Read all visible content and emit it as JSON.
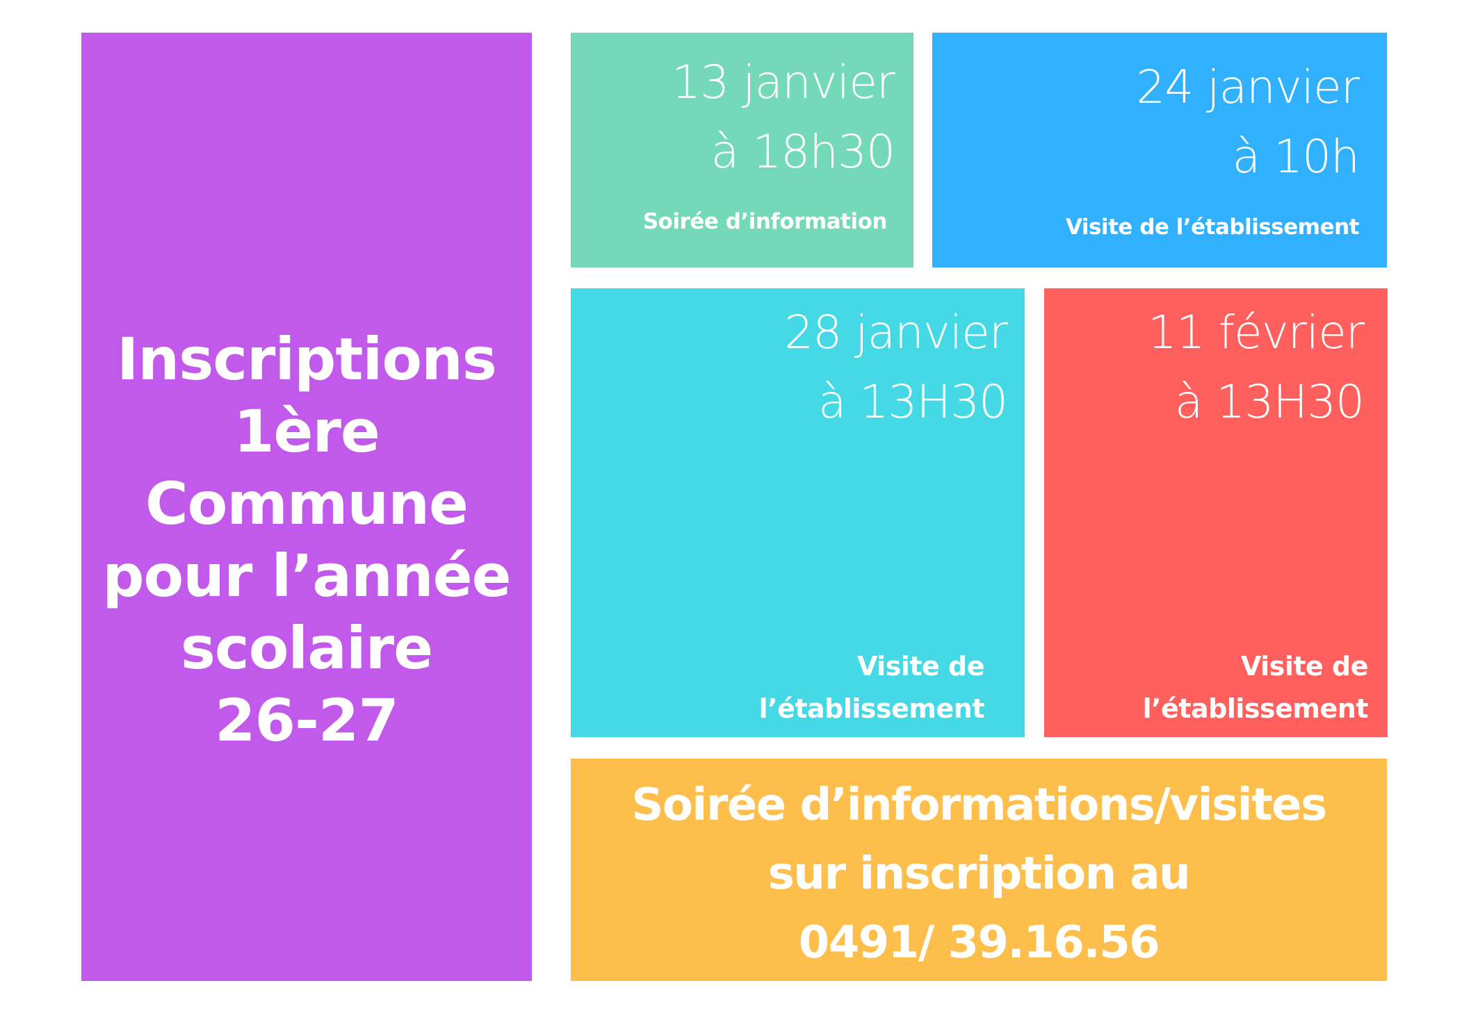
{
  "colors": {
    "purple": "#C15AEA",
    "green": "#74D9B9",
    "blue": "#31B0FE",
    "cyan": "#45D9E6",
    "red": "#FF5F5D",
    "yellow": "#FDBE4C",
    "text": "#FFFFFF"
  },
  "title": {
    "lines": [
      "Inscriptions",
      "1ère",
      "Commune",
      "pour l’année",
      "scolaire",
      "26-27"
    ]
  },
  "events": [
    {
      "date": "13 janvier",
      "time": "à 18h30",
      "description": "Soirée d’information"
    },
    {
      "date": "24 janvier",
      "time": "à 10h",
      "description": "Visite de l’établissement"
    },
    {
      "date": "28 janvier",
      "time": "à 13H30",
      "description_lines": [
        "Visite de",
        "l’établissement"
      ]
    },
    {
      "date": "11 février",
      "time": "à 13H30",
      "description_lines": [
        "Visite de",
        "l’établissement"
      ]
    }
  ],
  "footer": {
    "lines": [
      "Soirée d’informations/visites",
      "sur inscription au",
      "0491/ 39.16.56"
    ],
    "phone": "0491/ 39.16.56"
  }
}
